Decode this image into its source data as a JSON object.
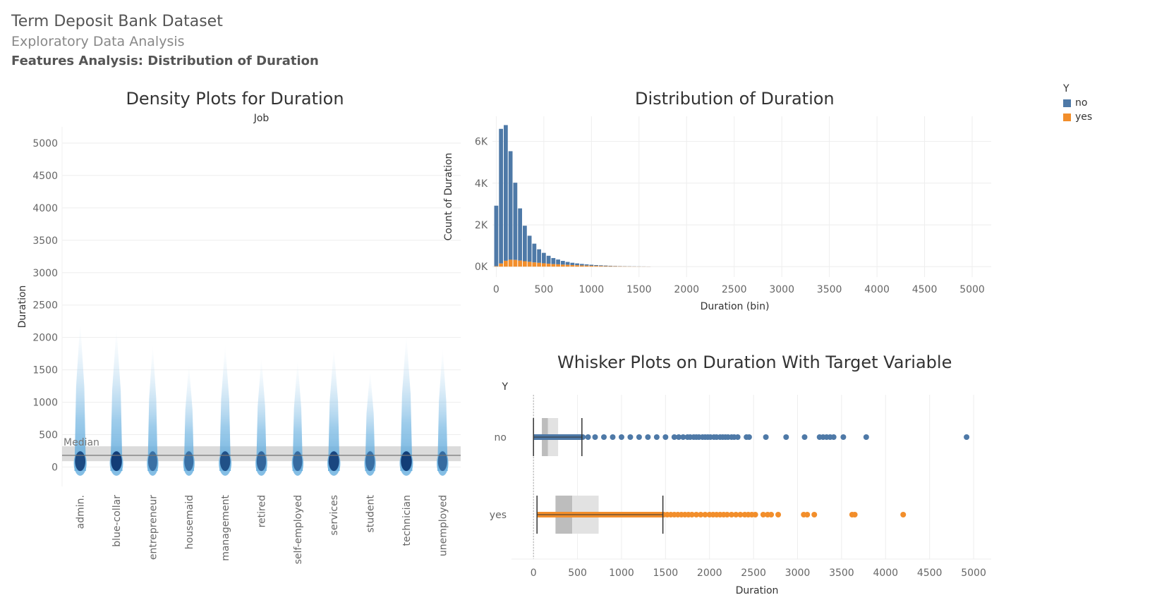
{
  "header": {
    "title": "Term Deposit Bank Dataset",
    "subtitle": "Exploratory Data Analysis",
    "section": "Features Analysis: Distribution of Duration"
  },
  "legend": {
    "title": "Y",
    "items": [
      {
        "label": "no",
        "color": "#4e79a7"
      },
      {
        "label": "yes",
        "color": "#f28e2b"
      }
    ]
  },
  "chart_data": [
    {
      "type": "density",
      "title": "Density Plots for Duration",
      "column_header": "Job",
      "ylabel": "Duration",
      "ylim": [
        -300,
        5250
      ],
      "yticks": [
        0,
        500,
        1000,
        1500,
        2000,
        2500,
        3000,
        3500,
        4000,
        4500,
        5000
      ],
      "categories": [
        "admin.",
        "blue-collar",
        "entrepreneur",
        "housemaid",
        "management",
        "retired",
        "self-employed",
        "services",
        "student",
        "technician",
        "unemployed"
      ],
      "upper_extent": [
        2250,
        2150,
        1900,
        1600,
        1900,
        1700,
        1650,
        1850,
        1500,
        2050,
        1850
      ],
      "intensity": [
        0.85,
        1.0,
        0.45,
        0.45,
        0.8,
        0.55,
        0.5,
        0.9,
        0.45,
        1.0,
        0.5
      ],
      "reference_line": {
        "label": "Median",
        "value": 180,
        "band": [
          90,
          320
        ]
      }
    },
    {
      "type": "bar",
      "stacked": true,
      "title": "Distribution of Duration",
      "xlabel": "Duration (bin)",
      "ylabel": "Count of Duration",
      "bin_width": 50,
      "xlim": [
        -40,
        5200
      ],
      "xticks": [
        0,
        500,
        1000,
        1500,
        2000,
        2500,
        3000,
        3500,
        4000,
        4500,
        5000
      ],
      "ylim": [
        -500,
        7200
      ],
      "yticks": [
        {
          "value": 0,
          "label": "0K"
        },
        {
          "value": 2000,
          "label": "2K"
        },
        {
          "value": 4000,
          "label": "4K"
        },
        {
          "value": 6000,
          "label": "6K"
        }
      ],
      "x": [
        0,
        50,
        100,
        150,
        200,
        250,
        300,
        350,
        400,
        450,
        500,
        550,
        600,
        650,
        700,
        750,
        800,
        850,
        900,
        950,
        1000,
        1050,
        1100,
        1150,
        1200,
        1250,
        1300,
        1350,
        1400,
        1450,
        1500,
        1550,
        1600
      ],
      "series": [
        {
          "name": "no",
          "values": [
            2900,
            6450,
            6500,
            5200,
            3700,
            2500,
            1700,
            1250,
            900,
            650,
            500,
            380,
            290,
            230,
            180,
            140,
            110,
            90,
            75,
            60,
            50,
            40,
            35,
            28,
            22,
            18,
            14,
            11,
            9,
            7,
            6,
            5,
            4
          ]
        },
        {
          "name": "yes",
          "values": [
            20,
            150,
            280,
            330,
            320,
            290,
            260,
            230,
            200,
            180,
            160,
            140,
            120,
            110,
            95,
            85,
            75,
            65,
            55,
            48,
            40,
            34,
            28,
            24,
            20,
            16,
            13,
            10,
            8,
            6,
            5,
            4,
            3
          ]
        }
      ]
    },
    {
      "type": "box",
      "title": "Whisker Plots on Duration With Target Variable",
      "xlabel": "Duration",
      "ylabel": "Y",
      "xlim": [
        -250,
        5200
      ],
      "xticks": [
        0,
        500,
        1000,
        1500,
        2000,
        2500,
        3000,
        3500,
        4000,
        4500,
        5000
      ],
      "groups": [
        {
          "name": "no",
          "whisker_low": 0,
          "q1": 95,
          "median": 165,
          "q3": 280,
          "whisker_high": 550,
          "outliers": [
            560,
            620,
            700,
            800,
            900,
            1000,
            1100,
            1200,
            1300,
            1400,
            1500,
            1600,
            1650,
            1700,
            1750,
            1780,
            1820,
            1850,
            1880,
            1920,
            1950,
            1980,
            2010,
            2050,
            2080,
            2120,
            2150,
            2180,
            2210,
            2250,
            2280,
            2320,
            2420,
            2450,
            2640,
            2870,
            3080,
            3250,
            3290,
            3330,
            3370,
            3410,
            3520,
            3780,
            4920
          ]
        },
        {
          "name": "yes",
          "whisker_low": 40,
          "q1": 250,
          "median": 440,
          "q3": 740,
          "whisker_high": 1470,
          "outliers": [
            1480,
            1520,
            1560,
            1600,
            1640,
            1680,
            1720,
            1760,
            1800,
            1850,
            1900,
            1950,
            2000,
            2040,
            2080,
            2120,
            2160,
            2200,
            2250,
            2300,
            2350,
            2400,
            2440,
            2480,
            2520,
            2610,
            2660,
            2700,
            2780,
            3070,
            3110,
            3190,
            3620,
            3650,
            4200
          ]
        }
      ]
    }
  ]
}
